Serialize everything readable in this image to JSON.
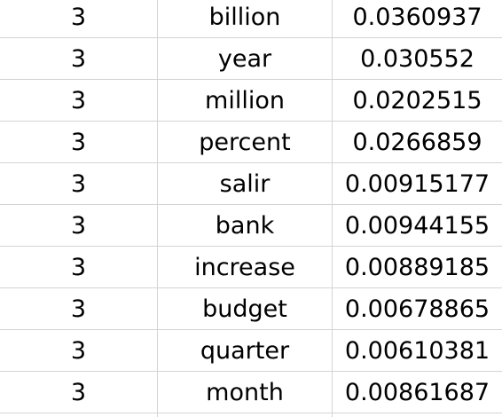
{
  "table": {
    "rows": [
      {
        "col1": "3",
        "word": "billion",
        "value": "0.0360937"
      },
      {
        "col1": "3",
        "word": "year",
        "value": "0.030552"
      },
      {
        "col1": "3",
        "word": "million",
        "value": "0.0202515"
      },
      {
        "col1": "3",
        "word": "percent",
        "value": "0.0266859"
      },
      {
        "col1": "3",
        "word": "salir",
        "value": "0.00915177"
      },
      {
        "col1": "3",
        "word": "bank",
        "value": "0.00944155"
      },
      {
        "col1": "3",
        "word": "increase",
        "value": "0.00889185"
      },
      {
        "col1": "3",
        "word": "budget",
        "value": "0.00678865"
      },
      {
        "col1": "3",
        "word": "quarter",
        "value": "0.00610381"
      },
      {
        "col1": "3",
        "word": "month",
        "value": "0.00861687"
      }
    ]
  },
  "colors": {
    "gridline": "#d4d4d4",
    "text": "#000000",
    "background": "#ffffff"
  }
}
